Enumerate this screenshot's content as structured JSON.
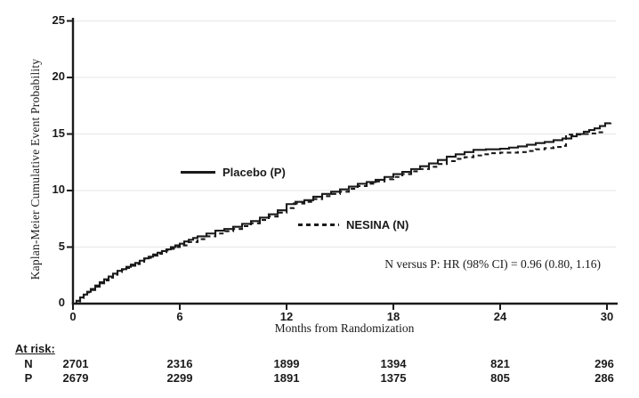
{
  "colors": {
    "line": "#1a1a1a",
    "grid": "#ebe9e9",
    "text": "#1a1a1a",
    "background": "#ffffff"
  },
  "chart_data": {
    "type": "line",
    "subtype": "kaplan-meier-step",
    "title": "",
    "ylabel": "Kaplan-Meier Cumulative Event Probability",
    "xlabel": "Months from Randomization",
    "xlim": [
      0,
      30
    ],
    "ylim": [
      0,
      25
    ],
    "x_ticks": [
      "0",
      "6",
      "12",
      "18",
      "24",
      "30"
    ],
    "y_ticks": [
      "25",
      "20",
      "15",
      "10",
      "5",
      "0"
    ],
    "grid": "horizontal gridlines at y = 5, 10, 15, 20, 25 (light gray)",
    "grid_values": [
      5,
      10,
      15,
      20,
      25
    ],
    "annotation": "N versus P: HR (98% CI) = 0.96 (0.80, 1.16)",
    "legend": [
      {
        "id": "placebo",
        "name": "Placebo (P)",
        "style": "solid"
      },
      {
        "id": "nesina",
        "name": "NESINA (N)",
        "style": "dashed"
      }
    ],
    "series": [
      {
        "id": "placebo",
        "name": "Placebo (P)",
        "line": "solid",
        "points": [
          [
            0,
            0
          ],
          [
            0.2,
            0.25
          ],
          [
            0.4,
            0.55
          ],
          [
            0.6,
            0.8
          ],
          [
            0.8,
            1.05
          ],
          [
            1,
            1.3
          ],
          [
            1.25,
            1.6
          ],
          [
            1.5,
            1.9
          ],
          [
            1.75,
            2.15
          ],
          [
            2,
            2.4
          ],
          [
            2.25,
            2.65
          ],
          [
            2.5,
            2.9
          ],
          [
            2.75,
            3.05
          ],
          [
            3,
            3.25
          ],
          [
            3.25,
            3.45
          ],
          [
            3.5,
            3.6
          ],
          [
            3.75,
            3.8
          ],
          [
            4,
            4.0
          ],
          [
            4.25,
            4.15
          ],
          [
            4.5,
            4.35
          ],
          [
            4.75,
            4.5
          ],
          [
            5,
            4.65
          ],
          [
            5.25,
            4.8
          ],
          [
            5.5,
            5.0
          ],
          [
            5.75,
            5.15
          ],
          [
            6,
            5.3
          ],
          [
            6.25,
            5.5
          ],
          [
            6.5,
            5.65
          ],
          [
            6.75,
            5.8
          ],
          [
            7,
            5.95
          ],
          [
            7.5,
            6.2
          ],
          [
            8,
            6.45
          ],
          [
            8.5,
            6.6
          ],
          [
            9,
            6.8
          ],
          [
            9.5,
            7.05
          ],
          [
            10,
            7.3
          ],
          [
            10.5,
            7.6
          ],
          [
            11,
            7.9
          ],
          [
            11.5,
            8.25
          ],
          [
            12,
            8.8
          ],
          [
            12.5,
            9.0
          ],
          [
            13,
            9.15
          ],
          [
            13.5,
            9.45
          ],
          [
            14,
            9.7
          ],
          [
            14.5,
            9.9
          ],
          [
            15,
            10.1
          ],
          [
            15.5,
            10.35
          ],
          [
            16,
            10.6
          ],
          [
            16.5,
            10.75
          ],
          [
            17,
            10.95
          ],
          [
            17.5,
            11.2
          ],
          [
            18,
            11.45
          ],
          [
            18.5,
            11.65
          ],
          [
            19,
            11.9
          ],
          [
            19.5,
            12.15
          ],
          [
            20,
            12.4
          ],
          [
            20.5,
            12.7
          ],
          [
            21,
            13.0
          ],
          [
            21.5,
            13.2
          ],
          [
            22,
            13.4
          ],
          [
            22.5,
            13.6
          ],
          [
            23.2,
            13.65
          ],
          [
            24,
            13.7
          ],
          [
            24.5,
            13.8
          ],
          [
            25,
            13.9
          ],
          [
            25.5,
            14.05
          ],
          [
            26,
            14.2
          ],
          [
            26.5,
            14.3
          ],
          [
            27,
            14.45
          ],
          [
            27.5,
            14.6
          ],
          [
            28,
            14.8
          ],
          [
            28.3,
            15.0
          ],
          [
            28.7,
            15.2
          ],
          [
            29,
            15.35
          ],
          [
            29.3,
            15.5
          ],
          [
            29.6,
            15.7
          ],
          [
            29.9,
            15.95
          ],
          [
            30.2,
            16.0
          ]
        ]
      },
      {
        "id": "nesina",
        "name": "NESINA (N)",
        "line": "dashed",
        "points": [
          [
            0,
            0
          ],
          [
            0.2,
            0.2
          ],
          [
            0.4,
            0.5
          ],
          [
            0.6,
            0.75
          ],
          [
            0.8,
            1.0
          ],
          [
            1,
            1.2
          ],
          [
            1.25,
            1.5
          ],
          [
            1.5,
            1.8
          ],
          [
            1.75,
            2.05
          ],
          [
            2,
            2.3
          ],
          [
            2.25,
            2.55
          ],
          [
            2.5,
            2.8
          ],
          [
            2.75,
            3.0
          ],
          [
            3,
            3.15
          ],
          [
            3.25,
            3.35
          ],
          [
            3.5,
            3.5
          ],
          [
            3.75,
            3.7
          ],
          [
            4,
            3.9
          ],
          [
            4.25,
            4.05
          ],
          [
            4.5,
            4.25
          ],
          [
            4.75,
            4.4
          ],
          [
            5,
            4.55
          ],
          [
            5.25,
            4.7
          ],
          [
            5.5,
            4.85
          ],
          [
            5.75,
            5.0
          ],
          [
            6,
            5.15
          ],
          [
            6.5,
            5.45
          ],
          [
            7,
            5.7
          ],
          [
            7.5,
            5.95
          ],
          [
            8,
            6.2
          ],
          [
            8.5,
            6.4
          ],
          [
            9,
            6.6
          ],
          [
            9.5,
            6.85
          ],
          [
            10,
            7.1
          ],
          [
            10.5,
            7.4
          ],
          [
            11,
            7.7
          ],
          [
            11.5,
            8.05
          ],
          [
            12,
            8.45
          ],
          [
            12.4,
            8.85
          ],
          [
            13,
            9.0
          ],
          [
            13.5,
            9.25
          ],
          [
            14,
            9.5
          ],
          [
            14.5,
            9.7
          ],
          [
            15,
            9.9
          ],
          [
            15.5,
            10.15
          ],
          [
            16,
            10.4
          ],
          [
            16.5,
            10.6
          ],
          [
            17,
            10.8
          ],
          [
            17.5,
            11.0
          ],
          [
            18,
            11.2
          ],
          [
            18.5,
            11.45
          ],
          [
            19,
            11.7
          ],
          [
            19.5,
            11.9
          ],
          [
            20,
            12.1
          ],
          [
            20.5,
            12.35
          ],
          [
            21,
            12.6
          ],
          [
            21.5,
            12.8
          ],
          [
            22,
            12.95
          ],
          [
            22.5,
            13.1
          ],
          [
            23,
            13.2
          ],
          [
            23.5,
            13.3
          ],
          [
            24,
            13.35
          ],
          [
            25,
            13.4
          ],
          [
            25.5,
            13.5
          ],
          [
            26,
            13.65
          ],
          [
            26.5,
            13.75
          ],
          [
            27,
            13.85
          ],
          [
            27.4,
            13.95
          ],
          [
            27.7,
            14.95
          ],
          [
            28.5,
            15.0
          ],
          [
            29,
            15.05
          ],
          [
            29.4,
            15.15
          ],
          [
            29.8,
            15.2
          ]
        ]
      }
    ]
  },
  "at_risk": {
    "title": "At risk:",
    "rows": [
      {
        "label": "N",
        "values": [
          "2701",
          "2316",
          "1899",
          "1394",
          "821",
          "296"
        ]
      },
      {
        "label": "P",
        "values": [
          "2679",
          "2299",
          "1891",
          "1375",
          "805",
          "286"
        ]
      }
    ]
  }
}
